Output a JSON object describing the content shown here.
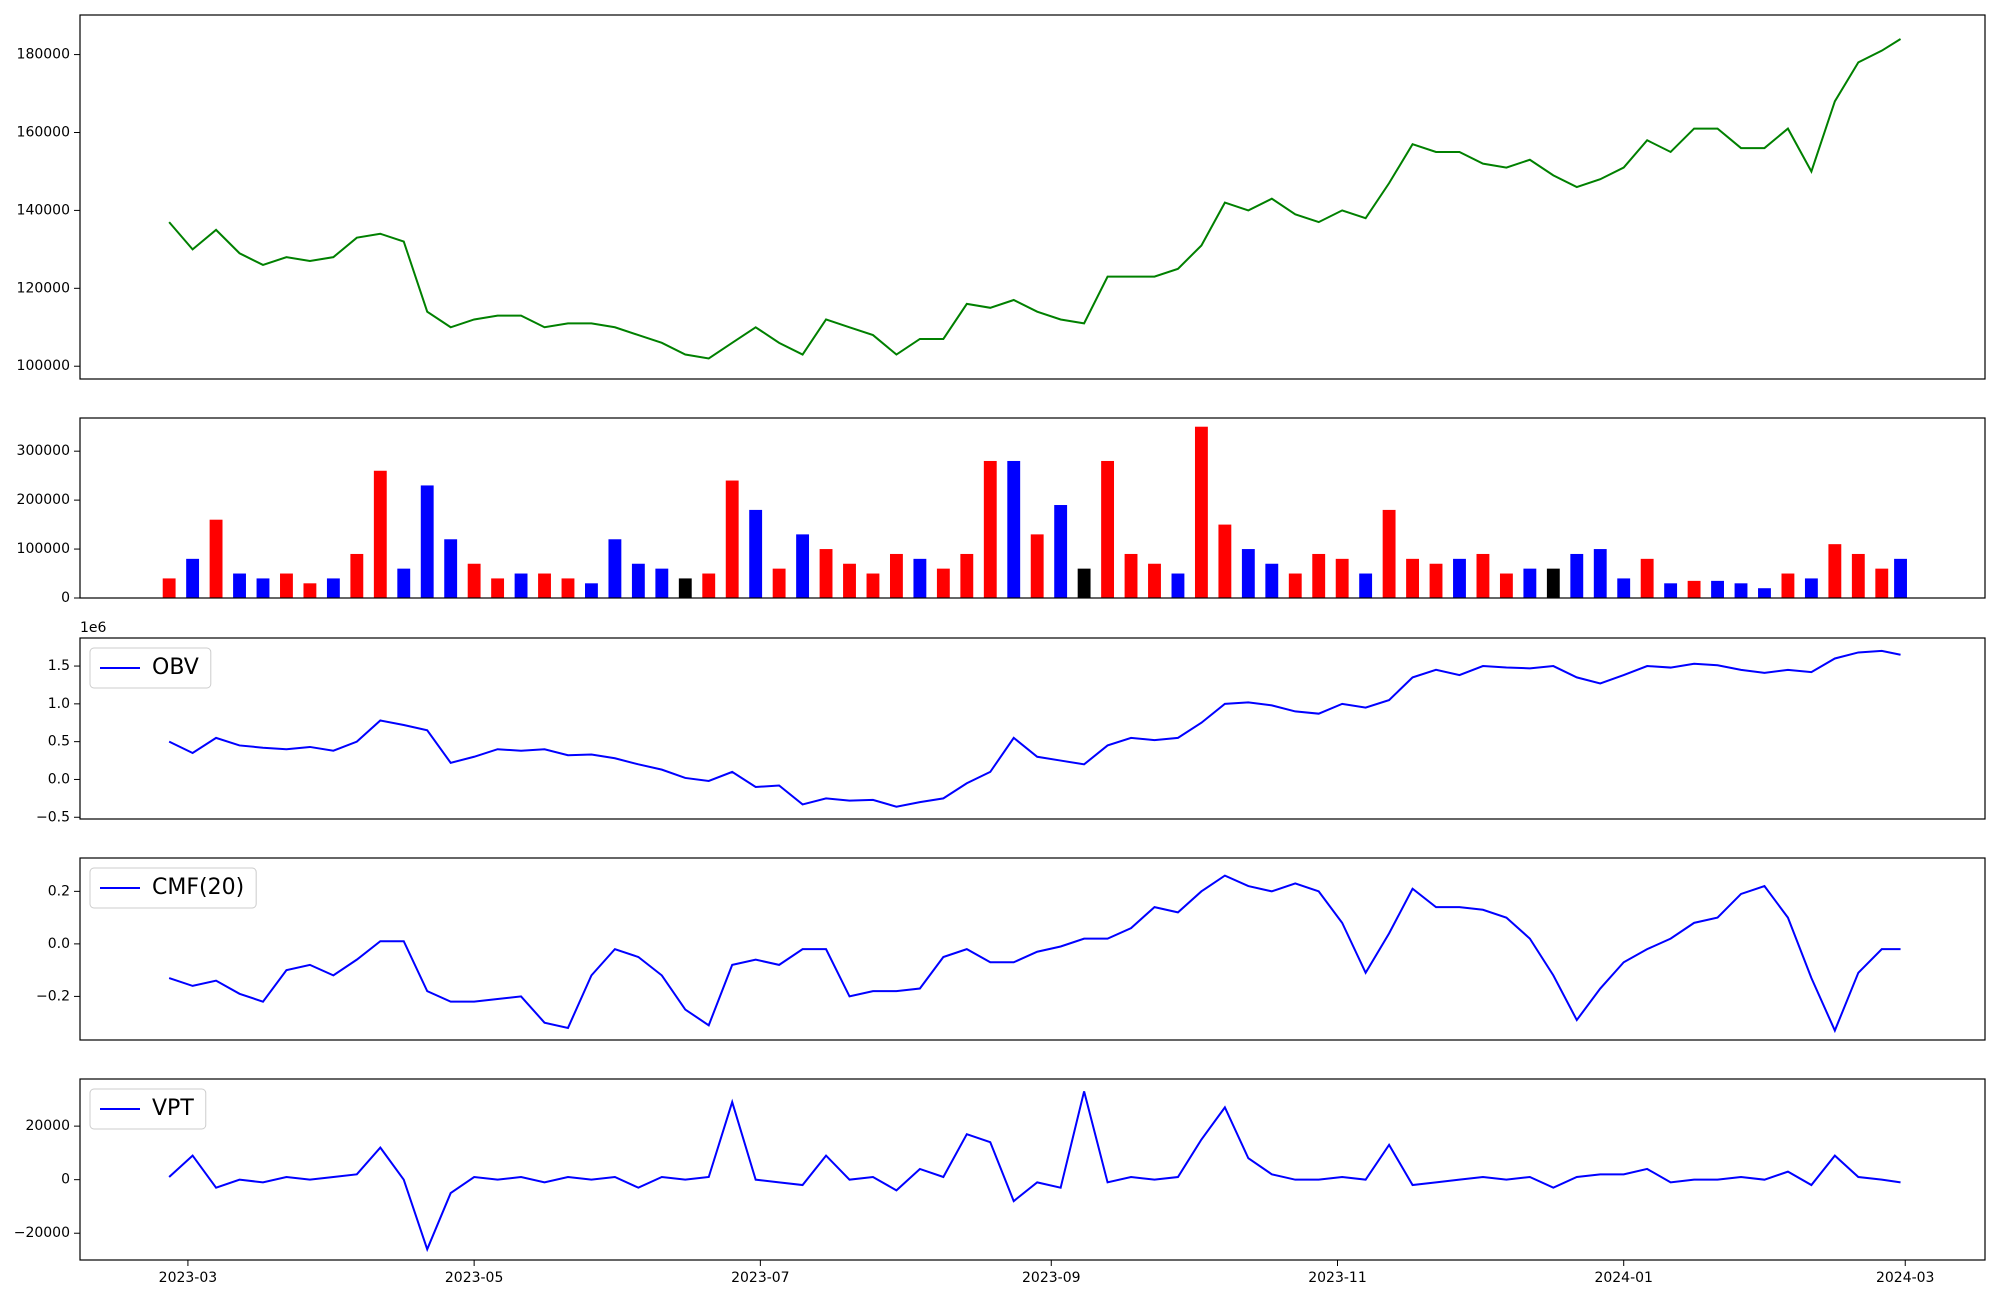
{
  "chart_data": [
    {
      "type": "line",
      "color": "green",
      "x": [
        "2023-02-25",
        "2023-03-02",
        "2023-03-07",
        "2023-03-12",
        "2023-03-17",
        "2023-03-22",
        "2023-03-27",
        "2023-04-01",
        "2023-04-06",
        "2023-04-11",
        "2023-04-16",
        "2023-04-21",
        "2023-04-26",
        "2023-05-01",
        "2023-05-06",
        "2023-05-11",
        "2023-05-16",
        "2023-05-21",
        "2023-05-26",
        "2023-05-31",
        "2023-06-05",
        "2023-06-10",
        "2023-06-15",
        "2023-06-20",
        "2023-06-25",
        "2023-06-30",
        "2023-07-05",
        "2023-07-10",
        "2023-07-15",
        "2023-07-20",
        "2023-07-25",
        "2023-07-30",
        "2023-08-04",
        "2023-08-09",
        "2023-08-14",
        "2023-08-19",
        "2023-08-24",
        "2023-08-29",
        "2023-09-03",
        "2023-09-08",
        "2023-09-13",
        "2023-09-18",
        "2023-09-23",
        "2023-09-28",
        "2023-10-03",
        "2023-10-08",
        "2023-10-13",
        "2023-10-18",
        "2023-10-23",
        "2023-10-28",
        "2023-11-02",
        "2023-11-07",
        "2023-11-12",
        "2023-11-17",
        "2023-11-22",
        "2023-11-27",
        "2023-12-02",
        "2023-12-07",
        "2023-12-12",
        "2023-12-17",
        "2023-12-22",
        "2023-12-27",
        "2024-01-01",
        "2024-01-06",
        "2024-01-11",
        "2024-01-16",
        "2024-01-21",
        "2024-01-26",
        "2024-01-31",
        "2024-02-05",
        "2024-02-10",
        "2024-02-15",
        "2024-02-20",
        "2024-02-25",
        "2024-02-29"
      ],
      "values": [
        137000,
        130000,
        135000,
        129000,
        126000,
        128000,
        127000,
        128000,
        133000,
        134000,
        132000,
        114000,
        110000,
        112000,
        113000,
        113000,
        110000,
        111000,
        111000,
        110000,
        108000,
        106000,
        103000,
        102000,
        106000,
        110000,
        106000,
        103000,
        112000,
        110000,
        108000,
        103000,
        107000,
        107000,
        116000,
        115000,
        117000,
        114000,
        112000,
        111000,
        123000,
        123000,
        123000,
        125000,
        131000,
        142000,
        140000,
        143000,
        139000,
        137000,
        140000,
        138000,
        147000,
        157000,
        155000,
        155000,
        152000,
        151000,
        153000,
        149000,
        146000,
        148000,
        151000,
        158000,
        155000,
        161000,
        161000,
        156000,
        156000,
        161000,
        150000,
        168000,
        178000,
        181000,
        184000
      ],
      "xlim": [
        "2023-02-06",
        "2024-03-18"
      ],
      "ylim": [
        96720,
        190160
      ],
      "yticks": [
        100000,
        120000,
        140000,
        160000,
        180000
      ]
    },
    {
      "type": "bar",
      "x": [
        "2023-02-25",
        "2023-03-02",
        "2023-03-07",
        "2023-03-12",
        "2023-03-17",
        "2023-03-22",
        "2023-03-27",
        "2023-04-01",
        "2023-04-06",
        "2023-04-11",
        "2023-04-16",
        "2023-04-21",
        "2023-04-26",
        "2023-05-01",
        "2023-05-06",
        "2023-05-11",
        "2023-05-16",
        "2023-05-21",
        "2023-05-26",
        "2023-05-31",
        "2023-06-05",
        "2023-06-10",
        "2023-06-15",
        "2023-06-20",
        "2023-06-25",
        "2023-06-30",
        "2023-07-05",
        "2023-07-10",
        "2023-07-15",
        "2023-07-20",
        "2023-07-25",
        "2023-07-30",
        "2023-08-04",
        "2023-08-09",
        "2023-08-14",
        "2023-08-19",
        "2023-08-24",
        "2023-08-29",
        "2023-09-03",
        "2023-09-08",
        "2023-09-13",
        "2023-09-18",
        "2023-09-23",
        "2023-09-28",
        "2023-10-03",
        "2023-10-08",
        "2023-10-13",
        "2023-10-18",
        "2023-10-23",
        "2023-10-28",
        "2023-11-02",
        "2023-11-07",
        "2023-11-12",
        "2023-11-17",
        "2023-11-22",
        "2023-11-27",
        "2023-12-02",
        "2023-12-07",
        "2023-12-12",
        "2023-12-17",
        "2023-12-22",
        "2023-12-27",
        "2024-01-01",
        "2024-01-06",
        "2024-01-11",
        "2024-01-16",
        "2024-01-21",
        "2024-01-26",
        "2024-01-31",
        "2024-02-05",
        "2024-02-10",
        "2024-02-15",
        "2024-02-20",
        "2024-02-25",
        "2024-02-29"
      ],
      "values": [
        40000,
        80000,
        160000,
        50000,
        40000,
        50000,
        30000,
        40000,
        90000,
        260000,
        60000,
        230000,
        120000,
        70000,
        40000,
        50000,
        50000,
        40000,
        30000,
        120000,
        70000,
        60000,
        40000,
        50000,
        240000,
        180000,
        60000,
        130000,
        100000,
        70000,
        50000,
        90000,
        80000,
        60000,
        90000,
        280000,
        280000,
        130000,
        190000,
        60000,
        280000,
        90000,
        70000,
        50000,
        350000,
        150000,
        100000,
        70000,
        50000,
        90000,
        80000,
        50000,
        180000,
        80000,
        70000,
        80000,
        90000,
        50000,
        60000,
        60000,
        90000,
        100000,
        40000,
        80000,
        30000,
        35000,
        35000,
        30000,
        20000,
        50000,
        40000,
        110000,
        90000,
        60000,
        80000
      ],
      "colors": [
        "red",
        "blue",
        "red",
        "blue",
        "blue",
        "red",
        "red",
        "blue",
        "red",
        "red",
        "blue",
        "blue",
        "blue",
        "red",
        "red",
        "blue",
        "red",
        "red",
        "blue",
        "blue",
        "blue",
        "blue",
        "black",
        "red",
        "red",
        "blue",
        "red",
        "blue",
        "red",
        "red",
        "red",
        "red",
        "blue",
        "red",
        "red",
        "red",
        "blue",
        "red",
        "blue",
        "black",
        "red",
        "red",
        "red",
        "blue",
        "red",
        "red",
        "blue",
        "blue",
        "red",
        "red",
        "red",
        "blue",
        "red",
        "red",
        "red",
        "blue",
        "red",
        "red",
        "blue",
        "black",
        "blue",
        "blue",
        "blue",
        "red",
        "blue",
        "red",
        "blue",
        "blue",
        "blue",
        "red",
        "blue",
        "red",
        "red",
        "red",
        "blue"
      ],
      "xlim": [
        "2023-02-06",
        "2024-03-18"
      ],
      "ylim": [
        0,
        367800
      ],
      "yticks": [
        0,
        100000,
        200000,
        300000
      ]
    },
    {
      "type": "line",
      "legend": "upper left",
      "y_offset_label": "1e6",
      "x": [
        "2023-02-25",
        "2023-03-02",
        "2023-03-07",
        "2023-03-12",
        "2023-03-17",
        "2023-03-22",
        "2023-03-27",
        "2023-04-01",
        "2023-04-06",
        "2023-04-11",
        "2023-04-16",
        "2023-04-21",
        "2023-04-26",
        "2023-05-01",
        "2023-05-06",
        "2023-05-11",
        "2023-05-16",
        "2023-05-21",
        "2023-05-26",
        "2023-05-31",
        "2023-06-05",
        "2023-06-10",
        "2023-06-15",
        "2023-06-20",
        "2023-06-25",
        "2023-06-30",
        "2023-07-05",
        "2023-07-10",
        "2023-07-15",
        "2023-07-20",
        "2023-07-25",
        "2023-07-30",
        "2023-08-04",
        "2023-08-09",
        "2023-08-14",
        "2023-08-19",
        "2023-08-24",
        "2023-08-29",
        "2023-09-03",
        "2023-09-08",
        "2023-09-13",
        "2023-09-18",
        "2023-09-23",
        "2023-09-28",
        "2023-10-03",
        "2023-10-08",
        "2023-10-13",
        "2023-10-18",
        "2023-10-23",
        "2023-10-28",
        "2023-11-02",
        "2023-11-07",
        "2023-11-12",
        "2023-11-17",
        "2023-11-22",
        "2023-11-27",
        "2023-12-02",
        "2023-12-07",
        "2023-12-12",
        "2023-12-17",
        "2023-12-22",
        "2023-12-27",
        "2024-01-01",
        "2024-01-06",
        "2024-01-11",
        "2024-01-16",
        "2024-01-21",
        "2024-01-26",
        "2024-01-31",
        "2024-02-05",
        "2024-02-10",
        "2024-02-15",
        "2024-02-20",
        "2024-02-25",
        "2024-02-29"
      ],
      "series": [
        {
          "name": "OBV",
          "color": "blue",
          "values": [
            500000,
            350000,
            550000,
            450000,
            420000,
            400000,
            430000,
            380000,
            500000,
            780000,
            720000,
            650000,
            220000,
            300000,
            400000,
            380000,
            400000,
            320000,
            330000,
            280000,
            200000,
            130000,
            20000,
            -20000,
            100000,
            -100000,
            -80000,
            -330000,
            -250000,
            -280000,
            -270000,
            -360000,
            -300000,
            -250000,
            -50000,
            100000,
            550000,
            300000,
            250000,
            200000,
            450000,
            550000,
            520000,
            550000,
            750000,
            1000000,
            1020000,
            980000,
            900000,
            870000,
            1000000,
            950000,
            1050000,
            1350000,
            1450000,
            1380000,
            1500000,
            1480000,
            1470000,
            1500000,
            1350000,
            1270000,
            1380000,
            1500000,
            1480000,
            1530000,
            1510000,
            1450000,
            1410000,
            1450000,
            1420000,
            1600000,
            1680000,
            1700000,
            1650000
          ]
        }
      ],
      "xlim": [
        "2023-02-06",
        "2024-03-18"
      ],
      "ylim": [
        -523000,
        1871000
      ],
      "yticks": [
        {
          "value": -500000,
          "label": "−0.5"
        },
        {
          "value": 0,
          "label": "0.0"
        },
        {
          "value": 500000,
          "label": "0.5"
        },
        {
          "value": 1000000,
          "label": "1.0"
        },
        {
          "value": 1500000,
          "label": "1.5"
        }
      ]
    },
    {
      "type": "line",
      "legend": "upper left",
      "x": [
        "2023-02-25",
        "2023-03-02",
        "2023-03-07",
        "2023-03-12",
        "2023-03-17",
        "2023-03-22",
        "2023-03-27",
        "2023-04-01",
        "2023-04-06",
        "2023-04-11",
        "2023-04-16",
        "2023-04-21",
        "2023-04-26",
        "2023-05-01",
        "2023-05-06",
        "2023-05-11",
        "2023-05-16",
        "2023-05-21",
        "2023-05-26",
        "2023-05-31",
        "2023-06-05",
        "2023-06-10",
        "2023-06-15",
        "2023-06-20",
        "2023-06-25",
        "2023-06-30",
        "2023-07-05",
        "2023-07-10",
        "2023-07-15",
        "2023-07-20",
        "2023-07-25",
        "2023-07-30",
        "2023-08-04",
        "2023-08-09",
        "2023-08-14",
        "2023-08-19",
        "2023-08-24",
        "2023-08-29",
        "2023-09-03",
        "2023-09-08",
        "2023-09-13",
        "2023-09-18",
        "2023-09-23",
        "2023-09-28",
        "2023-10-03",
        "2023-10-08",
        "2023-10-13",
        "2023-10-18",
        "2023-10-23",
        "2023-10-28",
        "2023-11-02",
        "2023-11-07",
        "2023-11-12",
        "2023-11-17",
        "2023-11-22",
        "2023-11-27",
        "2023-12-02",
        "2023-12-07",
        "2023-12-12",
        "2023-12-17",
        "2023-12-22",
        "2023-12-27",
        "2024-01-01",
        "2024-01-06",
        "2024-01-11",
        "2024-01-16",
        "2024-01-21",
        "2024-01-26",
        "2024-01-31",
        "2024-02-05",
        "2024-02-10",
        "2024-02-15",
        "2024-02-20",
        "2024-02-25",
        "2024-02-29"
      ],
      "series": [
        {
          "name": "CMF(20)",
          "color": "blue",
          "values": [
            -0.13,
            -0.16,
            -0.14,
            -0.19,
            -0.22,
            -0.1,
            -0.08,
            -0.12,
            -0.06,
            0.01,
            0.01,
            -0.18,
            -0.22,
            -0.22,
            -0.21,
            -0.2,
            -0.3,
            -0.32,
            -0.12,
            -0.02,
            -0.05,
            -0.12,
            -0.25,
            -0.31,
            -0.08,
            -0.06,
            -0.08,
            -0.02,
            -0.02,
            -0.2,
            -0.18,
            -0.18,
            -0.17,
            -0.05,
            -0.02,
            -0.07,
            -0.07,
            -0.03,
            -0.01,
            0.02,
            0.02,
            0.06,
            0.14,
            0.12,
            0.2,
            0.26,
            0.22,
            0.2,
            0.23,
            0.2,
            0.08,
            -0.11,
            0.04,
            0.21,
            0.14,
            0.14,
            0.13,
            0.1,
            0.02,
            -0.12,
            -0.29,
            -0.17,
            -0.07,
            -0.02,
            0.02,
            0.08,
            0.1,
            0.19,
            0.22,
            0.1,
            -0.13,
            -0.33,
            -0.11,
            -0.02,
            -0.02
          ]
        }
      ],
      "xlim": [
        "2023-02-06",
        "2024-03-18"
      ],
      "ylim": [
        -0.366,
        0.327
      ],
      "yticks": [
        {
          "value": -0.2,
          "label": "−0.2"
        },
        {
          "value": 0,
          "label": "0.0"
        },
        {
          "value": 0.2,
          "label": "0.2"
        }
      ]
    },
    {
      "type": "line",
      "legend": "upper left",
      "x": [
        "2023-02-25",
        "2023-03-02",
        "2023-03-07",
        "2023-03-12",
        "2023-03-17",
        "2023-03-22",
        "2023-03-27",
        "2023-04-01",
        "2023-04-06",
        "2023-04-11",
        "2023-04-16",
        "2023-04-21",
        "2023-04-26",
        "2023-05-01",
        "2023-05-06",
        "2023-05-11",
        "2023-05-16",
        "2023-05-21",
        "2023-05-26",
        "2023-05-31",
        "2023-06-05",
        "2023-06-10",
        "2023-06-15",
        "2023-06-20",
        "2023-06-25",
        "2023-06-30",
        "2023-07-05",
        "2023-07-10",
        "2023-07-15",
        "2023-07-20",
        "2023-07-25",
        "2023-07-30",
        "2023-08-04",
        "2023-08-09",
        "2023-08-14",
        "2023-08-19",
        "2023-08-24",
        "2023-08-29",
        "2023-09-03",
        "2023-09-08",
        "2023-09-13",
        "2023-09-18",
        "2023-09-23",
        "2023-09-28",
        "2023-10-03",
        "2023-10-08",
        "2023-10-13",
        "2023-10-18",
        "2023-10-23",
        "2023-10-28",
        "2023-11-02",
        "2023-11-07",
        "2023-11-12",
        "2023-11-17",
        "2023-11-22",
        "2023-11-27",
        "2023-12-02",
        "2023-12-07",
        "2023-12-12",
        "2023-12-17",
        "2023-12-22",
        "2023-12-27",
        "2024-01-01",
        "2024-01-06",
        "2024-01-11",
        "2024-01-16",
        "2024-01-21",
        "2024-01-26",
        "2024-01-31",
        "2024-02-05",
        "2024-02-10",
        "2024-02-15",
        "2024-02-20",
        "2024-02-25",
        "2024-02-29"
      ],
      "series": [
        {
          "name": "VPT",
          "color": "blue",
          "values": [
            1000,
            9000,
            -3000,
            0,
            -1000,
            1000,
            0,
            1000,
            2000,
            12000,
            0,
            -26000,
            -5000,
            1000,
            0,
            1000,
            -1000,
            1000,
            0,
            1000,
            -3000,
            1000,
            0,
            1000,
            29000,
            0,
            -1000,
            -2000,
            9000,
            0,
            1000,
            -4000,
            4000,
            1000,
            17000,
            14000,
            -8000,
            -1000,
            -3000,
            33000,
            -1000,
            1000,
            0,
            1000,
            15000,
            27000,
            8000,
            2000,
            0,
            0,
            1000,
            0,
            13000,
            -2000,
            -1000,
            0,
            1000,
            0,
            1000,
            -3000,
            1000,
            2000,
            2000,
            4000,
            -1000,
            0,
            0,
            1000,
            0,
            3000,
            -2000,
            9000,
            1000,
            0,
            -1000
          ]
        }
      ],
      "xlim": [
        "2023-02-06",
        "2024-03-18"
      ],
      "ylim": [
        -30000,
        37600
      ],
      "yticks": [
        {
          "value": -20000,
          "label": "−20000"
        },
        0,
        20000
      ],
      "xticks": [
        {
          "value": "2023-03-01",
          "label": "2023-03"
        },
        {
          "value": "2023-05-01",
          "label": "2023-05"
        },
        {
          "value": "2023-07-01",
          "label": "2023-07"
        },
        {
          "value": "2023-09-01",
          "label": "2023-09"
        },
        {
          "value": "2023-11-01",
          "label": "2023-11"
        },
        {
          "value": "2024-01-01",
          "label": "2024-01"
        },
        {
          "value": "2024-03-01",
          "label": "2024-03"
        }
      ]
    }
  ]
}
